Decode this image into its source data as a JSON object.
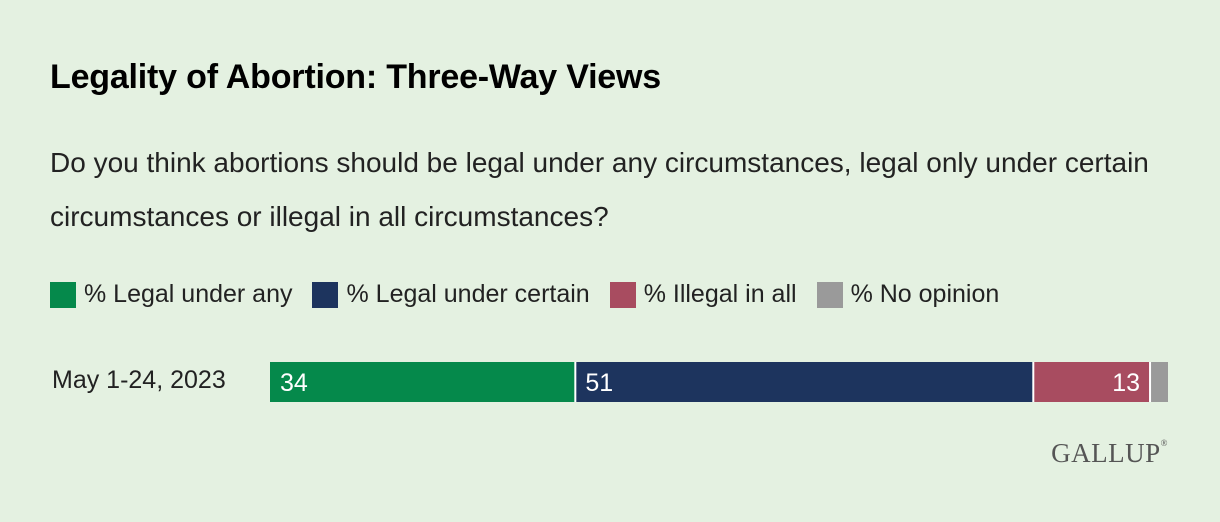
{
  "chart_data": {
    "type": "bar",
    "orientation": "horizontal",
    "stacked": true,
    "title": "Legality of Abortion: Three-Way Views",
    "subtitle": "Do you think abortions should be legal under any circumstances, legal only under certain circumstances or illegal in all circumstances?",
    "categories": [
      "May 1-24, 2023"
    ],
    "series": [
      {
        "name": "% Legal under any",
        "values": [
          34
        ],
        "color": "#05894b",
        "label": "34",
        "label_align": "left"
      },
      {
        "name": "% Legal under certain",
        "values": [
          51
        ],
        "color": "#1d345e",
        "label": "51",
        "label_align": "left"
      },
      {
        "name": "% Illegal in all",
        "values": [
          13
        ],
        "color": "#a84c60",
        "label": "13",
        "label_align": "right"
      },
      {
        "name": "% No opinion",
        "values": [
          2
        ],
        "color": "#9a9a9a",
        "label": "",
        "label_align": "left"
      }
    ],
    "xlim": [
      0,
      100
    ],
    "grid": false,
    "legend_position": "top-left"
  },
  "logo": {
    "text": "GALLUP",
    "mark": "®"
  }
}
